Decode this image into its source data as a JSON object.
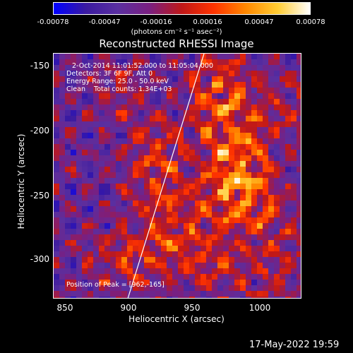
{
  "colorbar": {
    "ticks": [
      "-0.00078",
      "-0.00047",
      "-0.00016",
      "0.00016",
      "0.00047",
      "0.00078"
    ],
    "unit_label": "(photons cm⁻² s⁻¹ asec⁻²)",
    "range": [
      -0.00078,
      0.00078
    ],
    "colormap": [
      "#0000ff",
      "#3a1aa0",
      "#5a2fa0",
      "#7a1f80",
      "#c01818",
      "#ff3300",
      "#ff8800",
      "#ffcc33",
      "#ffffff"
    ]
  },
  "info": {
    "line1": "2-Oct-2014 11:01:52.000 to 11:05:04.000",
    "line2": "Detectors: 3F 6F 9F, Att 0",
    "line3": "Energy Range: 25.0 - 50.0 keV",
    "line4": "Clean    Total counts: 1.34E+03",
    "peak": "Position of Peak = [962,-165]"
  },
  "date_stamp": "17-May-2022 19:59",
  "chart_data": {
    "type": "heatmap",
    "title": "Reconstructed RHESSI Image",
    "xlabel": "Heliocentric X (arcsec)",
    "ylabel": "Heliocentric Y (arcsec)",
    "xlim": [
      837,
      1032
    ],
    "ylim": [
      -331,
      -140
    ],
    "x_ticks": [
      "850",
      "900",
      "950",
      "1000"
    ],
    "y_ticks": [
      "-150",
      "-200",
      "-250",
      "-300"
    ],
    "peak": [
      962,
      -165
    ],
    "limb_line": [
      [
        895,
        -331
      ],
      [
        955,
        -140
      ]
    ],
    "sources": [
      {
        "x": 965,
        "y": -165,
        "value": 0.00078
      },
      {
        "x": 975,
        "y": -200,
        "value": 0.00072
      },
      {
        "x": 985,
        "y": -225,
        "value": 0.00068
      },
      {
        "x": 990,
        "y": -255,
        "value": 0.0007
      },
      {
        "x": 970,
        "y": -250,
        "value": 0.00055
      },
      {
        "x": 930,
        "y": -270,
        "value": 0.0006
      },
      {
        "x": 920,
        "y": -210,
        "value": 0.0005
      },
      {
        "x": 915,
        "y": -240,
        "value": 0.00045
      },
      {
        "x": 910,
        "y": -300,
        "value": 0.0005
      },
      {
        "x": 955,
        "y": -300,
        "value": 0.00055
      },
      {
        "x": 1000,
        "y": -310,
        "value": 0.00045
      },
      {
        "x": 1015,
        "y": -180,
        "value": 0.0004
      },
      {
        "x": 890,
        "y": -170,
        "value": 0.0004
      },
      {
        "x": 880,
        "y": -300,
        "value": 0.00035
      },
      {
        "x": 1020,
        "y": -280,
        "value": 0.00035
      }
    ]
  }
}
